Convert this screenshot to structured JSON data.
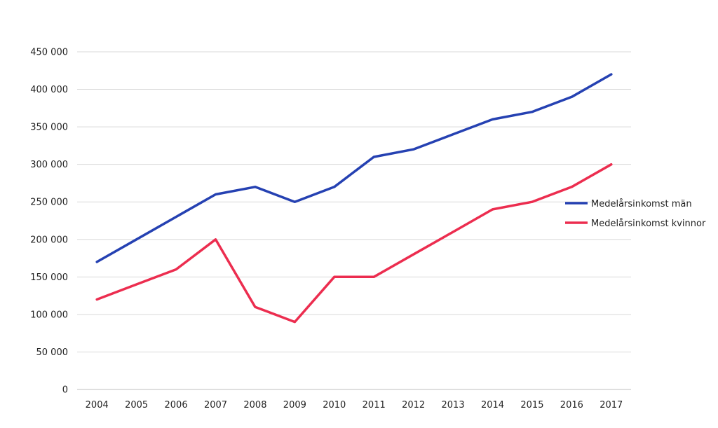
{
  "chart_data": {
    "type": "line",
    "title": "",
    "xlabel": "",
    "ylabel": "",
    "categories": [
      "2004",
      "2005",
      "2006",
      "2007",
      "2008",
      "2009",
      "2010",
      "2011",
      "2012",
      "2013",
      "2014",
      "2015",
      "2016",
      "2017"
    ],
    "ylim": [
      0,
      450000
    ],
    "yticks": [
      0,
      50000,
      100000,
      150000,
      200000,
      250000,
      300000,
      350000,
      400000,
      450000
    ],
    "ytick_labels": [
      "0",
      "50 000",
      "100 000",
      "150 000",
      "200 000",
      "250 000",
      "300 000",
      "350 000",
      "400 000",
      "450 000"
    ],
    "grid": true,
    "legend_position": "right",
    "series": [
      {
        "name": "Medelårsinkomst män",
        "color": "#2541b2",
        "values": [
          170000,
          200000,
          230000,
          260000,
          270000,
          250000,
          270000,
          310000,
          320000,
          340000,
          360000,
          370000,
          390000,
          420000
        ]
      },
      {
        "name": "Medelårsinkomst kvinnor",
        "color": "#ec2d4f",
        "values": [
          120000,
          140000,
          160000,
          200000,
          110000,
          90000,
          150000,
          150000,
          180000,
          210000,
          240000,
          250000,
          270000,
          300000
        ]
      }
    ]
  }
}
